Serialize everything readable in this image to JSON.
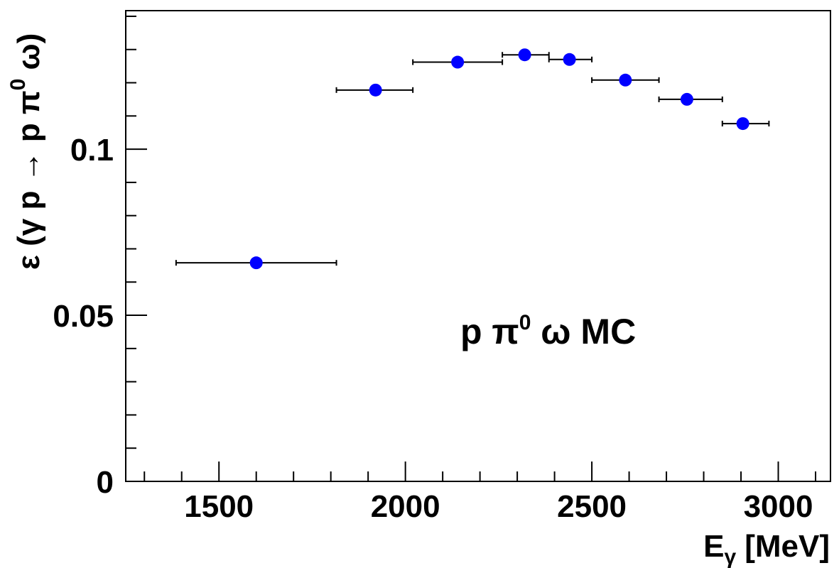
{
  "chart_data": {
    "type": "scatter",
    "xlabel": "E",
    "xlabel_sub": "γ",
    "xlabel_unit": "[MeV]",
    "ylabel_parts": [
      "ε (γ p → p π",
      "0",
      " ω)"
    ],
    "annotation_parts": [
      "p π",
      "0",
      " ω MC"
    ],
    "xlim": [
      1250,
      3140
    ],
    "ylim": [
      0,
      0.1417
    ],
    "x_major_ticks": [
      1500,
      2000,
      2500,
      3000
    ],
    "x_tick_labels": [
      "1500",
      "2000",
      "2500",
      "3000"
    ],
    "x_minor_step": 100,
    "y_major_ticks": [
      0,
      0.05,
      0.1
    ],
    "y_tick_labels": [
      "0",
      "0.05",
      "0.1"
    ],
    "y_minor_step": 0.01,
    "marker_color": "#0000ff",
    "series": [
      {
        "points": [
          {
            "x": 1600,
            "y": 0.0658,
            "xlo": 1385,
            "xhi": 1815
          },
          {
            "x": 1920,
            "y": 0.1178,
            "xlo": 1815,
            "xhi": 2020
          },
          {
            "x": 2140,
            "y": 0.1262,
            "xlo": 2020,
            "xhi": 2260
          },
          {
            "x": 2320,
            "y": 0.1284,
            "xlo": 2260,
            "xhi": 2385
          },
          {
            "x": 2440,
            "y": 0.127,
            "xlo": 2385,
            "xhi": 2500
          },
          {
            "x": 2590,
            "y": 0.1208,
            "xlo": 2500,
            "xhi": 2680
          },
          {
            "x": 2755,
            "y": 0.115,
            "xlo": 2680,
            "xhi": 2850
          },
          {
            "x": 2905,
            "y": 0.1077,
            "xlo": 2850,
            "xhi": 2975
          }
        ]
      }
    ]
  }
}
